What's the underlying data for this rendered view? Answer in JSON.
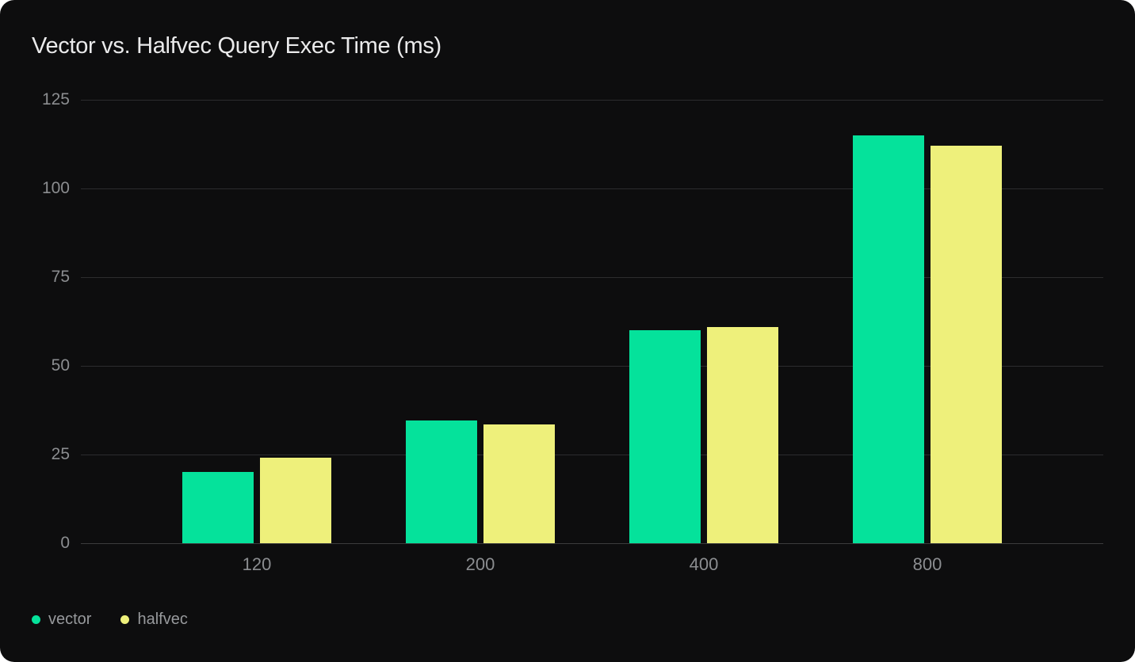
{
  "chart_data": {
    "type": "bar",
    "title": "Vector vs. Halfvec Query Exec Time (ms)",
    "categories": [
      "120",
      "200",
      "400",
      "800"
    ],
    "series": [
      {
        "name": "vector",
        "color": "#05e29b",
        "values": [
          20,
          34.5,
          60,
          115
        ]
      },
      {
        "name": "halfvec",
        "color": "#eef07b",
        "values": [
          24,
          33.5,
          61,
          112
        ]
      }
    ],
    "xlabel": "",
    "ylabel": "",
    "ylim": [
      0,
      125
    ],
    "yticks": [
      0,
      25,
      50,
      75,
      100,
      125
    ],
    "grid": true,
    "legend_position": "bottom-left"
  },
  "theme": {
    "card_background": "#0d0d0e",
    "page_background": "#ffffff",
    "gridline_color": "#2c2c2e",
    "axis_text_color": "#8b8d90",
    "title_color": "#eaeaeb",
    "legend_text_color": "#97999c"
  }
}
